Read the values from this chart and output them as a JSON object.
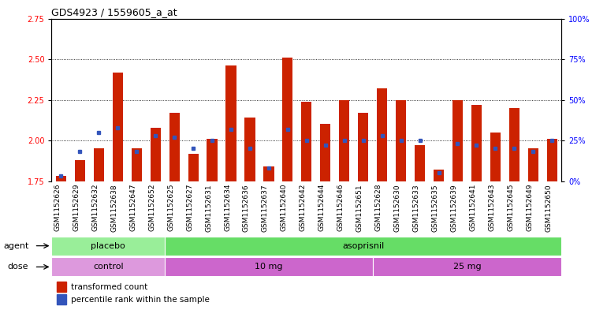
{
  "title": "GDS4923 / 1559605_a_at",
  "samples": [
    "GSM1152626",
    "GSM1152629",
    "GSM1152632",
    "GSM1152638",
    "GSM1152647",
    "GSM1152652",
    "GSM1152625",
    "GSM1152627",
    "GSM1152631",
    "GSM1152634",
    "GSM1152636",
    "GSM1152637",
    "GSM1152640",
    "GSM1152642",
    "GSM1152644",
    "GSM1152646",
    "GSM1152651",
    "GSM1152628",
    "GSM1152630",
    "GSM1152633",
    "GSM1152635",
    "GSM1152639",
    "GSM1152641",
    "GSM1152643",
    "GSM1152645",
    "GSM1152649",
    "GSM1152650"
  ],
  "transformed_count": [
    1.78,
    1.88,
    1.95,
    2.42,
    1.95,
    2.08,
    2.17,
    1.92,
    2.01,
    2.46,
    2.14,
    1.84,
    2.51,
    2.24,
    2.1,
    2.25,
    2.17,
    2.32,
    2.25,
    1.97,
    1.82,
    2.25,
    2.22,
    2.05,
    2.2,
    1.95,
    2.01
  ],
  "percentile_rank": [
    3,
    18,
    30,
    33,
    18,
    28,
    27,
    20,
    25,
    32,
    20,
    8,
    32,
    25,
    22,
    25,
    25,
    28,
    25,
    25,
    5,
    23,
    22,
    20,
    20,
    18,
    25
  ],
  "bar_color": "#cc2200",
  "dot_color": "#3355bb",
  "baseline": 1.75,
  "ylim_left": [
    1.75,
    2.75
  ],
  "ylim_right": [
    0,
    100
  ],
  "yticks_left": [
    1.75,
    2.0,
    2.25,
    2.5,
    2.75
  ],
  "yticks_right": [
    0,
    25,
    50,
    75,
    100
  ],
  "gridlines": [
    2.0,
    2.25,
    2.5
  ],
  "agent_groups": [
    {
      "label": "placebo",
      "start": 0,
      "end": 6,
      "color": "#99ee99"
    },
    {
      "label": "asoprisnil",
      "start": 6,
      "end": 27,
      "color": "#66dd66"
    }
  ],
  "dose_groups": [
    {
      "label": "control",
      "start": 0,
      "end": 6,
      "color": "#dd99dd"
    },
    {
      "label": "10 mg",
      "start": 6,
      "end": 17,
      "color": "#cc66cc"
    },
    {
      "label": "25 mg",
      "start": 17,
      "end": 27,
      "color": "#cc66cc"
    }
  ],
  "legend_items": [
    {
      "label": "transformed count",
      "color": "#cc2200"
    },
    {
      "label": "percentile rank within the sample",
      "color": "#3355bb"
    }
  ],
  "xtick_bg": "#d8d8d8",
  "label_fontsize": 8,
  "tick_fontsize": 7
}
